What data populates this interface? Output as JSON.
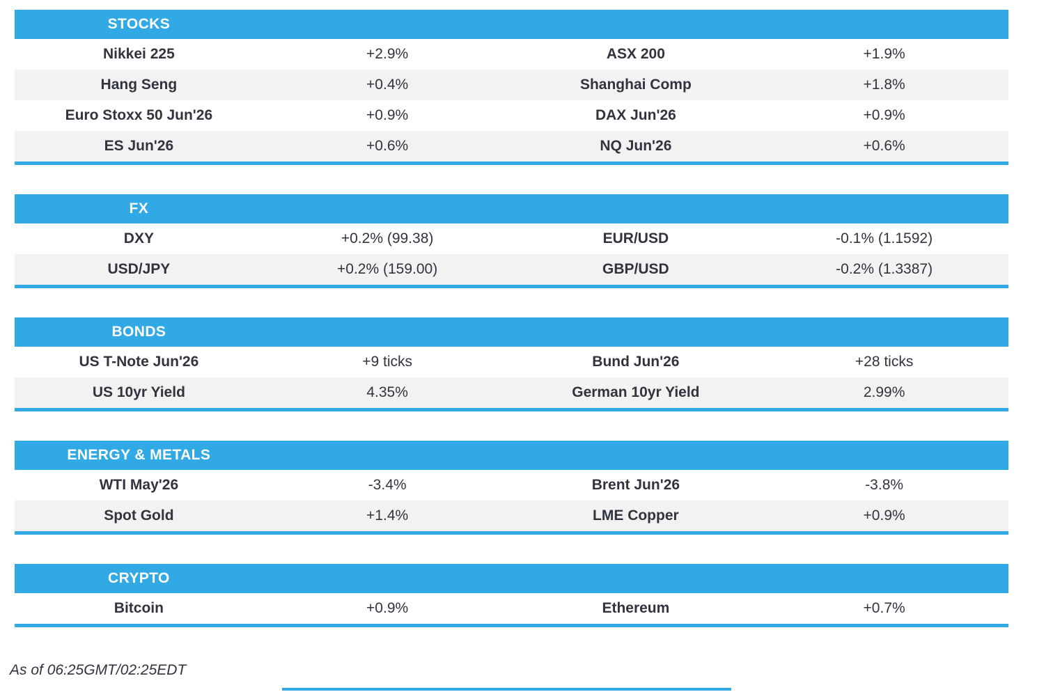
{
  "colors": {
    "accent": "#31A9E4",
    "row_alt": "#F2F2F2",
    "text": "#31343E",
    "header_text": "#FFFFFF"
  },
  "sections": [
    {
      "title": "STOCKS",
      "rows": [
        {
          "l_label": "Nikkei 225",
          "l_value": "+2.9%",
          "r_label": "ASX 200",
          "r_value": "+1.9%"
        },
        {
          "l_label": "Hang Seng",
          "l_value": "+0.4%",
          "r_label": "Shanghai Comp",
          "r_value": "+1.8%"
        },
        {
          "l_label": "Euro Stoxx 50 Jun'26",
          "l_value": "+0.9%",
          "r_label": "DAX Jun'26",
          "r_value": "+0.9%"
        },
        {
          "l_label": "ES Jun'26",
          "l_value": "+0.6%",
          "r_label": "NQ Jun'26",
          "r_value": "+0.6%"
        }
      ]
    },
    {
      "title": "FX",
      "rows": [
        {
          "l_label": "DXY",
          "l_value": "+0.2% (99.38)",
          "r_label": "EUR/USD",
          "r_value": "-0.1% (1.1592)"
        },
        {
          "l_label": "USD/JPY",
          "l_value": "+0.2% (159.00)",
          "r_label": "GBP/USD",
          "r_value": "-0.2% (1.3387)"
        }
      ]
    },
    {
      "title": "BONDS",
      "rows": [
        {
          "l_label": "US T-Note Jun'26",
          "l_value": "+9 ticks",
          "r_label": "Bund Jun'26",
          "r_value": "+28 ticks"
        },
        {
          "l_label": "US 10yr Yield",
          "l_value": "4.35%",
          "r_label": "German 10yr Yield",
          "r_value": "2.99%"
        }
      ]
    },
    {
      "title": "ENERGY & METALS",
      "rows": [
        {
          "l_label": "WTI May'26",
          "l_value": "-3.4%",
          "r_label": "Brent Jun'26",
          "r_value": "-3.8%"
        },
        {
          "l_label": "Spot Gold",
          "l_value": "+1.4%",
          "r_label": "LME Copper",
          "r_value": "+0.9%"
        }
      ]
    },
    {
      "title": "CRYPTO",
      "rows": [
        {
          "l_label": "Bitcoin",
          "l_value": "+0.9%",
          "r_label": "Ethereum",
          "r_value": "+0.7%"
        }
      ]
    }
  ],
  "footer": {
    "as_of": "As of 06:25GMT/02:25EDT"
  }
}
